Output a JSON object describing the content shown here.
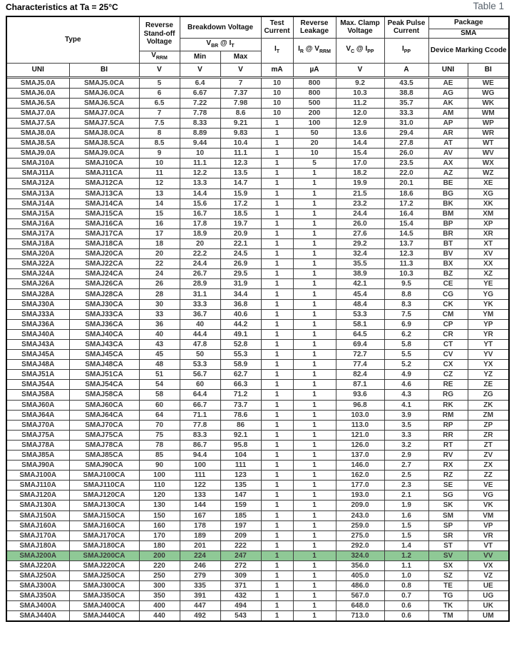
{
  "page": {
    "title": "Characteristics at Ta = 25°C",
    "table_label": "Table 1"
  },
  "table": {
    "header": {
      "type_label": "Type",
      "groups": {
        "reverse_standoff": "Reverse Stand-off Voltage",
        "breakdown": "Breakdown Voltage",
        "test_current": "Test Current",
        "reverse_leakage": "Reverse Leakage",
        "max_clamp": "Max. Clamp Voltage",
        "peak_pulse": "Peak Pulse Current",
        "package": "Package",
        "package_type": "SMA",
        "device_marking": "Device Marking Ccode"
      },
      "symbols": {
        "vrrm": "V<sub>RRM</sub>",
        "vbr_it": "V<sub>BR</sub> @ I<sub>T</sub>",
        "min": "Min",
        "max": "Max",
        "it": "I<sub>T</sub>",
        "ir_vrrm": "I<sub>R</sub> @ V<sub>RRM</sub>",
        "vc_ipp": "V<sub>C</sub> @ I<sub>PP</sub>",
        "ipp": "I<sub>PP</sub>"
      },
      "units": {
        "v1": "V",
        "v2": "V",
        "v3": "V",
        "ma": "mA",
        "ua": "µA",
        "v4": "V",
        "a": "A"
      },
      "col_uni": "UNI",
      "col_bi": "BI"
    },
    "highlight_row_index": 47,
    "highlight_color": "#8fc996",
    "rows": [
      [
        "SMAJ5.0A",
        "SMAJ5.0CA",
        "5",
        "6.4",
        "7",
        "10",
        "800",
        "9.2",
        "43.5",
        "AE",
        "WE"
      ],
      [
        "SMAJ6.0A",
        "SMAJ6.0CA",
        "6",
        "6.67",
        "7.37",
        "10",
        "800",
        "10.3",
        "38.8",
        "AG",
        "WG"
      ],
      [
        "SMAJ6.5A",
        "SMAJ6.5CA",
        "6.5",
        "7.22",
        "7.98",
        "10",
        "500",
        "11.2",
        "35.7",
        "AK",
        "WK"
      ],
      [
        "SMAJ7.0A",
        "SMAJ7.0CA",
        "7",
        "7.78",
        "8.6",
        "10",
        "200",
        "12.0",
        "33.3",
        "AM",
        "WM"
      ],
      [
        "SMAJ7.5A",
        "SMAJ7.5CA",
        "7.5",
        "8.33",
        "9.21",
        "1",
        "100",
        "12.9",
        "31.0",
        "AP",
        "WP"
      ],
      [
        "SMAJ8.0A",
        "SMAJ8.0CA",
        "8",
        "8.89",
        "9.83",
        "1",
        "50",
        "13.6",
        "29.4",
        "AR",
        "WR"
      ],
      [
        "SMAJ8.5A",
        "SMAJ8.5CA",
        "8.5",
        "9.44",
        "10.4",
        "1",
        "20",
        "14.4",
        "27.8",
        "AT",
        "WT"
      ],
      [
        "SMAJ9.0A",
        "SMAJ9.0CA",
        "9",
        "10",
        "11.1",
        "1",
        "10",
        "15.4",
        "26.0",
        "AV",
        "WV"
      ],
      [
        "SMAJ10A",
        "SMAJ10CA",
        "10",
        "11.1",
        "12.3",
        "1",
        "5",
        "17.0",
        "23.5",
        "AX",
        "WX"
      ],
      [
        "SMAJ11A",
        "SMAJ11CA",
        "11",
        "12.2",
        "13.5",
        "1",
        "1",
        "18.2",
        "22.0",
        "AZ",
        "WZ"
      ],
      [
        "SMAJ12A",
        "SMAJ12CA",
        "12",
        "13.3",
        "14.7",
        "1",
        "1",
        "19.9",
        "20.1",
        "BE",
        "XE"
      ],
      [
        "SMAJ13A",
        "SMAJ13CA",
        "13",
        "14.4",
        "15.9",
        "1",
        "1",
        "21.5",
        "18.6",
        "BG",
        "XG"
      ],
      [
        "SMAJ14A",
        "SMAJ14CA",
        "14",
        "15.6",
        "17.2",
        "1",
        "1",
        "23.2",
        "17.2",
        "BK",
        "XK"
      ],
      [
        "SMAJ15A",
        "SMAJ15CA",
        "15",
        "16.7",
        "18.5",
        "1",
        "1",
        "24.4",
        "16.4",
        "BM",
        "XM"
      ],
      [
        "SMAJ16A",
        "SMAJ16CA",
        "16",
        "17.8",
        "19.7",
        "1",
        "1",
        "26.0",
        "15.4",
        "BP",
        "XP"
      ],
      [
        "SMAJ17A",
        "SMAJ17CA",
        "17",
        "18.9",
        "20.9",
        "1",
        "1",
        "27.6",
        "14.5",
        "BR",
        "XR"
      ],
      [
        "SMAJ18A",
        "SMAJ18CA",
        "18",
        "20",
        "22.1",
        "1",
        "1",
        "29.2",
        "13.7",
        "BT",
        "XT"
      ],
      [
        "SMAJ20A",
        "SMAJ20CA",
        "20",
        "22.2",
        "24.5",
        "1",
        "1",
        "32.4",
        "12.3",
        "BV",
        "XV"
      ],
      [
        "SMAJ22A",
        "SMAJ22CA",
        "22",
        "24.4",
        "26.9",
        "1",
        "1",
        "35.5",
        "11.3",
        "BX",
        "XX"
      ],
      [
        "SMAJ24A",
        "SMAJ24CA",
        "24",
        "26.7",
        "29.5",
        "1",
        "1",
        "38.9",
        "10.3",
        "BZ",
        "XZ"
      ],
      [
        "SMAJ26A",
        "SMAJ26CA",
        "26",
        "28.9",
        "31.9",
        "1",
        "1",
        "42.1",
        "9.5",
        "CE",
        "YE"
      ],
      [
        "SMAJ28A",
        "SMAJ28CA",
        "28",
        "31.1",
        "34.4",
        "1",
        "1",
        "45.4",
        "8.8",
        "CG",
        "YG"
      ],
      [
        "SMAJ30A",
        "SMAJ30CA",
        "30",
        "33.3",
        "36.8",
        "1",
        "1",
        "48.4",
        "8.3",
        "CK",
        "YK"
      ],
      [
        "SMAJ33A",
        "SMAJ33CA",
        "33",
        "36.7",
        "40.6",
        "1",
        "1",
        "53.3",
        "7.5",
        "CM",
        "YM"
      ],
      [
        "SMAJ36A",
        "SMAJ36CA",
        "36",
        "40",
        "44.2",
        "1",
        "1",
        "58.1",
        "6.9",
        "CP",
        "YP"
      ],
      [
        "SMAJ40A",
        "SMAJ40CA",
        "40",
        "44.4",
        "49.1",
        "1",
        "1",
        "64.5",
        "6.2",
        "CR",
        "YR"
      ],
      [
        "SMAJ43A",
        "SMAJ43CA",
        "43",
        "47.8",
        "52.8",
        "1",
        "1",
        "69.4",
        "5.8",
        "CT",
        "YT"
      ],
      [
        "SMAJ45A",
        "SMAJ45CA",
        "45",
        "50",
        "55.3",
        "1",
        "1",
        "72.7",
        "5.5",
        "CV",
        "YV"
      ],
      [
        "SMAJ48A",
        "SMAJ48CA",
        "48",
        "53.3",
        "58.9",
        "1",
        "1",
        "77.4",
        "5.2",
        "CX",
        "YX"
      ],
      [
        "SMAJ51A",
        "SMAJ51CA",
        "51",
        "56.7",
        "62.7",
        "1",
        "1",
        "82.4",
        "4.9",
        "CZ",
        "YZ"
      ],
      [
        "SMAJ54A",
        "SMAJ54CA",
        "54",
        "60",
        "66.3",
        "1",
        "1",
        "87.1",
        "4.6",
        "RE",
        "ZE"
      ],
      [
        "SMAJ58A",
        "SMAJ58CA",
        "58",
        "64.4",
        "71.2",
        "1",
        "1",
        "93.6",
        "4.3",
        "RG",
        "ZG"
      ],
      [
        "SMAJ60A",
        "SMAJ60CA",
        "60",
        "66.7",
        "73.7",
        "1",
        "1",
        "96.8",
        "4.1",
        "RK",
        "ZK"
      ],
      [
        "SMAJ64A",
        "SMAJ64CA",
        "64",
        "71.1",
        "78.6",
        "1",
        "1",
        "103.0",
        "3.9",
        "RM",
        "ZM"
      ],
      [
        "SMAJ70A",
        "SMAJ70CA",
        "70",
        "77.8",
        "86",
        "1",
        "1",
        "113.0",
        "3.5",
        "RP",
        "ZP"
      ],
      [
        "SMAJ75A",
        "SMAJ75CA",
        "75",
        "83.3",
        "92.1",
        "1",
        "1",
        "121.0",
        "3.3",
        "RR",
        "ZR"
      ],
      [
        "SMAJ78A",
        "SMAJ78CA",
        "78",
        "86.7",
        "95.8",
        "1",
        "1",
        "126.0",
        "3.2",
        "RT",
        "ZT"
      ],
      [
        "SMAJ85A",
        "SMAJ85CA",
        "85",
        "94.4",
        "104",
        "1",
        "1",
        "137.0",
        "2.9",
        "RV",
        "ZV"
      ],
      [
        "SMAJ90A",
        "SMAJ90CA",
        "90",
        "100",
        "111",
        "1",
        "1",
        "146.0",
        "2.7",
        "RX",
        "ZX"
      ],
      [
        "SMAJ100A",
        "SMAJ100CA",
        "100",
        "111",
        "123",
        "1",
        "1",
        "162.0",
        "2.5",
        "RZ",
        "ZZ"
      ],
      [
        "SMAJ110A",
        "SMAJ110CA",
        "110",
        "122",
        "135",
        "1",
        "1",
        "177.0",
        "2.3",
        "SE",
        "VE"
      ],
      [
        "SMAJ120A",
        "SMAJ120CA",
        "120",
        "133",
        "147",
        "1",
        "1",
        "193.0",
        "2.1",
        "SG",
        "VG"
      ],
      [
        "SMAJ130A",
        "SMAJ130CA",
        "130",
        "144",
        "159",
        "1",
        "1",
        "209.0",
        "1.9",
        "SK",
        "VK"
      ],
      [
        "SMAJ150A",
        "SMAJ150CA",
        "150",
        "167",
        "185",
        "1",
        "1",
        "243.0",
        "1.6",
        "SM",
        "VM"
      ],
      [
        "SMAJ160A",
        "SMAJ160CA",
        "160",
        "178",
        "197",
        "1",
        "1",
        "259.0",
        "1.5",
        "SP",
        "VP"
      ],
      [
        "SMAJ170A",
        "SMAJ170CA",
        "170",
        "189",
        "209",
        "1",
        "1",
        "275.0",
        "1.5",
        "SR",
        "VR"
      ],
      [
        "SMAJ180A",
        "SMAJ180CA",
        "180",
        "201",
        "222",
        "1",
        "1",
        "292.0",
        "1.4",
        "ST",
        "VT"
      ],
      [
        "SMAJ200A",
        "SMAJ200CA",
        "200",
        "224",
        "247",
        "1",
        "1",
        "324.0",
        "1.2",
        "SV",
        "VV"
      ],
      [
        "SMAJ220A",
        "SMAJ220CA",
        "220",
        "246",
        "272",
        "1",
        "1",
        "356.0",
        "1.1",
        "SX",
        "VX"
      ],
      [
        "SMAJ250A",
        "SMAJ250CA",
        "250",
        "279",
        "309",
        "1",
        "1",
        "405.0",
        "1.0",
        "SZ",
        "VZ"
      ],
      [
        "SMAJ300A",
        "SMAJ300CA",
        "300",
        "335",
        "371",
        "1",
        "1",
        "486.0",
        "0.8",
        "TE",
        "UE"
      ],
      [
        "SMAJ350A",
        "SMAJ350CA",
        "350",
        "391",
        "432",
        "1",
        "1",
        "567.0",
        "0.7",
        "TG",
        "UG"
      ],
      [
        "SMAJ400A",
        "SMAJ400CA",
        "400",
        "447",
        "494",
        "1",
        "1",
        "648.0",
        "0.6",
        "TK",
        "UK"
      ],
      [
        "SMAJ440A",
        "SMAJ440CA",
        "440",
        "492",
        "543",
        "1",
        "1",
        "713.0",
        "0.6",
        "TM",
        "UM"
      ]
    ]
  }
}
